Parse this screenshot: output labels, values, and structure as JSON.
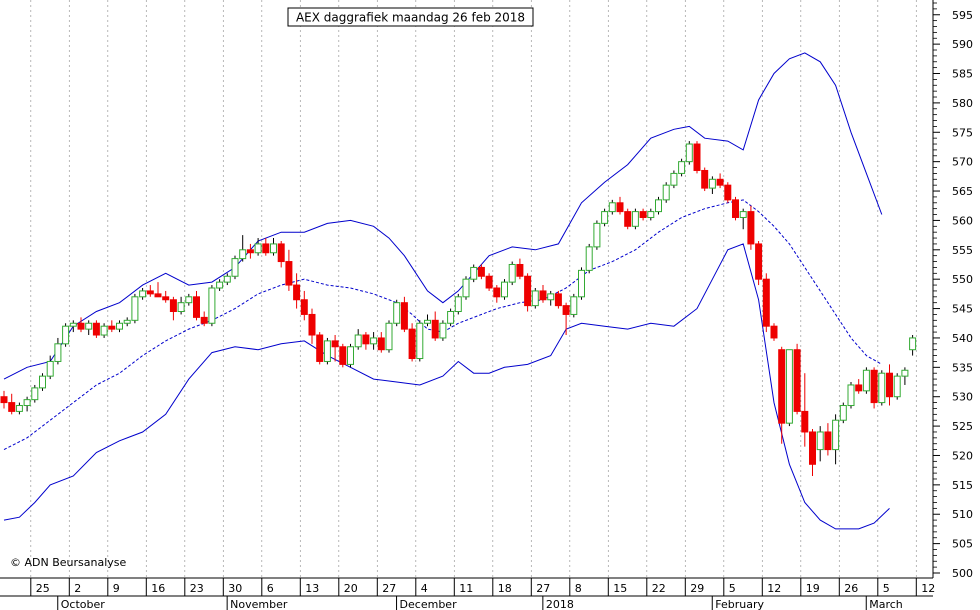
{
  "chart_data": {
    "type": "candlestick",
    "title": "AEX daggrafiek maandag 26 feb 2018",
    "watermark": "© ADN Beursanalyse",
    "ylim": [
      500,
      597
    ],
    "y_ticks": [
      500,
      505,
      510,
      515,
      520,
      525,
      530,
      535,
      540,
      545,
      550,
      555,
      560,
      565,
      570,
      575,
      580,
      585,
      590,
      595
    ],
    "x_tick_labels": [
      {
        "i": 4,
        "label": "25"
      },
      {
        "i": 9,
        "label": "2"
      },
      {
        "i": 14,
        "label": "9"
      },
      {
        "i": 19,
        "label": "16"
      },
      {
        "i": 24,
        "label": "23"
      },
      {
        "i": 29,
        "label": "30"
      },
      {
        "i": 34,
        "label": "6"
      },
      {
        "i": 39,
        "label": "13"
      },
      {
        "i": 44,
        "label": "20"
      },
      {
        "i": 49,
        "label": "27"
      },
      {
        "i": 54,
        "label": "4"
      },
      {
        "i": 59,
        "label": "11"
      },
      {
        "i": 64,
        "label": "18"
      },
      {
        "i": 69,
        "label": "27"
      },
      {
        "i": 74,
        "label": "8"
      },
      {
        "i": 79,
        "label": "15"
      },
      {
        "i": 84,
        "label": "22"
      },
      {
        "i": 89,
        "label": "29"
      },
      {
        "i": 94,
        "label": "5"
      },
      {
        "i": 99,
        "label": "12"
      },
      {
        "i": 104,
        "label": "19"
      },
      {
        "i": 109,
        "label": "26"
      },
      {
        "i": 114,
        "label": "5"
      },
      {
        "i": 119,
        "label": "12"
      }
    ],
    "month_labels": [
      {
        "i": 7.5,
        "label": "October"
      },
      {
        "i": 29.5,
        "label": "November"
      },
      {
        "i": 51.5,
        "label": "December"
      },
      {
        "i": 70.5,
        "label": "2018"
      },
      {
        "i": 92.5,
        "label": "February"
      },
      {
        "i": 112.5,
        "label": "March"
      }
    ],
    "candles": [
      [
        530.0,
        531.0,
        528.0,
        529.0
      ],
      [
        529.0,
        530.5,
        527.0,
        527.5
      ],
      [
        527.5,
        529.0,
        527.0,
        528.5
      ],
      [
        528.5,
        530.0,
        527.5,
        529.5
      ],
      [
        529.5,
        532.0,
        529.0,
        531.5
      ],
      [
        531.5,
        534.0,
        531.0,
        533.5
      ],
      [
        533.5,
        537.0,
        533.0,
        536.0
      ],
      [
        536.0,
        540.0,
        535.5,
        539.0
      ],
      [
        539.0,
        542.5,
        538.5,
        542.0
      ],
      [
        542.0,
        543.0,
        541.0,
        542.5
      ],
      [
        542.5,
        543.5,
        541.0,
        541.5
      ],
      [
        541.5,
        543.0,
        540.5,
        542.5
      ],
      [
        542.5,
        543.0,
        540.0,
        540.5
      ],
      [
        540.5,
        542.5,
        540.0,
        542.0
      ],
      [
        542.0,
        543.0,
        541.0,
        541.5
      ],
      [
        541.5,
        543.0,
        541.0,
        542.5
      ],
      [
        542.5,
        543.5,
        542.0,
        543.0
      ],
      [
        543.0,
        547.5,
        542.5,
        547.0
      ],
      [
        547.0,
        548.5,
        546.5,
        548.0
      ],
      [
        548.0,
        549.0,
        547.0,
        547.5
      ],
      [
        547.5,
        549.5,
        547.0,
        547.0
      ],
      [
        547.0,
        548.0,
        546.0,
        546.5
      ],
      [
        546.5,
        547.0,
        543.0,
        544.5
      ],
      [
        544.5,
        547.0,
        544.0,
        546.0
      ],
      [
        546.0,
        547.5,
        545.5,
        547.0
      ],
      [
        547.0,
        548.0,
        543.0,
        543.5
      ],
      [
        543.5,
        544.5,
        542.0,
        542.5
      ],
      [
        542.5,
        549.0,
        542.0,
        548.5
      ],
      [
        548.5,
        550.0,
        548.0,
        549.5
      ],
      [
        549.5,
        551.0,
        549.0,
        550.5
      ],
      [
        550.5,
        554.0,
        550.0,
        553.5
      ],
      [
        553.5,
        557.5,
        553.0,
        555.0
      ],
      [
        555.0,
        556.0,
        553.5,
        554.5
      ],
      [
        554.5,
        557.0,
        554.0,
        556.0
      ],
      [
        556.0,
        557.0,
        554.0,
        554.5
      ],
      [
        554.5,
        557.0,
        554.0,
        556.0
      ],
      [
        556.0,
        556.5,
        552.0,
        553.0
      ],
      [
        553.0,
        555.0,
        548.0,
        549.0
      ],
      [
        549.0,
        551.0,
        545.0,
        546.5
      ],
      [
        546.5,
        548.0,
        543.0,
        544.0
      ],
      [
        544.0,
        545.0,
        539.0,
        540.5
      ],
      [
        540.5,
        541.0,
        535.5,
        536.0
      ],
      [
        536.0,
        540.0,
        535.5,
        539.5
      ],
      [
        539.5,
        540.5,
        536.0,
        538.5
      ],
      [
        538.5,
        539.0,
        535.0,
        535.5
      ],
      [
        535.5,
        539.0,
        535.0,
        538.5
      ],
      [
        538.5,
        541.5,
        538.0,
        540.5
      ],
      [
        540.5,
        541.0,
        538.0,
        539.0
      ],
      [
        539.0,
        541.0,
        538.0,
        540.0
      ],
      [
        540.0,
        541.0,
        537.5,
        538.0
      ],
      [
        538.0,
        543.0,
        537.5,
        542.5
      ],
      [
        542.5,
        546.5,
        542.0,
        546.0
      ],
      [
        546.0,
        547.0,
        541.0,
        541.5
      ],
      [
        541.5,
        542.5,
        536.0,
        536.5
      ],
      [
        536.5,
        543.0,
        536.0,
        542.5
      ],
      [
        542.5,
        544.0,
        542.0,
        543.0
      ],
      [
        543.0,
        544.5,
        539.5,
        540.0
      ],
      [
        540.0,
        543.0,
        539.5,
        542.5
      ],
      [
        542.5,
        545.0,
        542.0,
        544.5
      ],
      [
        544.5,
        547.5,
        544.0,
        547.0
      ],
      [
        547.0,
        550.5,
        546.5,
        550.0
      ],
      [
        550.0,
        552.5,
        549.5,
        552.0
      ],
      [
        552.0,
        552.5,
        550.0,
        550.5
      ],
      [
        550.5,
        551.0,
        548.0,
        548.5
      ],
      [
        548.5,
        549.0,
        546.0,
        547.0
      ],
      [
        547.0,
        550.0,
        546.5,
        549.5
      ],
      [
        549.5,
        553.0,
        549.0,
        552.5
      ],
      [
        552.5,
        553.5,
        550.0,
        550.5
      ],
      [
        550.5,
        551.0,
        544.5,
        545.5
      ],
      [
        545.5,
        548.5,
        545.0,
        548.0
      ],
      [
        548.0,
        549.0,
        546.0,
        546.5
      ],
      [
        546.5,
        548.0,
        545.5,
        547.5
      ],
      [
        547.5,
        548.0,
        545.0,
        545.5
      ],
      [
        545.5,
        546.0,
        540.5,
        544.0
      ],
      [
        544.0,
        547.5,
        543.5,
        547.0
      ],
      [
        547.0,
        552.0,
        546.5,
        551.5
      ],
      [
        551.5,
        556.0,
        551.0,
        555.5
      ],
      [
        555.5,
        560.0,
        555.0,
        559.5
      ],
      [
        559.5,
        562.0,
        559.0,
        561.5
      ],
      [
        561.5,
        563.5,
        561.0,
        563.0
      ],
      [
        563.0,
        564.0,
        561.0,
        561.5
      ],
      [
        561.5,
        562.0,
        558.5,
        559.0
      ],
      [
        559.0,
        562.0,
        558.5,
        561.5
      ],
      [
        561.5,
        562.0,
        560.0,
        560.5
      ],
      [
        560.5,
        562.0,
        560.0,
        561.5
      ],
      [
        561.5,
        564.0,
        561.0,
        563.5
      ],
      [
        563.5,
        566.5,
        563.0,
        566.0
      ],
      [
        566.0,
        568.5,
        565.5,
        568.0
      ],
      [
        568.0,
        570.5,
        567.5,
        570.0
      ],
      [
        570.0,
        573.5,
        569.5,
        573.0
      ],
      [
        573.0,
        573.5,
        568.0,
        568.5
      ],
      [
        568.5,
        569.0,
        565.0,
        565.5
      ],
      [
        565.5,
        567.5,
        564.5,
        567.0
      ],
      [
        567.0,
        568.0,
        565.5,
        566.0
      ],
      [
        566.0,
        566.5,
        563.0,
        563.5
      ],
      [
        563.5,
        564.0,
        560.0,
        560.5
      ],
      [
        560.5,
        562.0,
        558.5,
        561.5
      ],
      [
        561.5,
        562.5,
        555.0,
        556.0
      ],
      [
        556.0,
        556.5,
        549.0,
        550.0
      ],
      [
        550.0,
        551.0,
        541.0,
        542.0
      ],
      [
        542.0,
        542.5,
        539.5,
        540.0
      ],
      [
        538.0,
        538.5,
        522.0,
        525.5
      ],
      [
        525.5,
        538.0,
        525.0,
        538.0
      ],
      [
        538.0,
        539.0,
        527.0,
        527.5
      ],
      [
        527.5,
        534.0,
        521.5,
        524.0
      ],
      [
        524.0,
        524.5,
        516.5,
        518.5
      ],
      [
        521.0,
        525.0,
        519.0,
        524.0
      ],
      [
        524.0,
        525.5,
        520.0,
        521.0
      ],
      [
        521.0,
        527.0,
        518.5,
        526.0
      ],
      [
        526.0,
        529.0,
        525.5,
        528.5
      ],
      [
        528.5,
        532.5,
        528.0,
        532.0
      ],
      [
        532.0,
        533.0,
        530.5,
        531.0
      ],
      [
        531.0,
        535.0,
        530.5,
        534.5
      ],
      [
        534.5,
        535.0,
        528.0,
        529.0
      ],
      [
        529.0,
        534.5,
        528.5,
        534.0
      ],
      [
        534.0,
        535.5,
        528.5,
        530.0
      ],
      [
        530.0,
        534.0,
        529.5,
        533.5
      ],
      [
        533.5,
        535.0,
        532.0,
        534.5
      ],
      [
        538.0,
        540.5,
        537.0,
        540.0
      ]
    ],
    "bollinger_bands": {
      "upper": [
        [
          0,
          533
        ],
        [
          3,
          535
        ],
        [
          6,
          536
        ],
        [
          9,
          542
        ],
        [
          12,
          544.5
        ],
        [
          15,
          546
        ],
        [
          18,
          549
        ],
        [
          21,
          551
        ],
        [
          24,
          549
        ],
        [
          27,
          549.5
        ],
        [
          30,
          552
        ],
        [
          33,
          556.5
        ],
        [
          36,
          558
        ],
        [
          39,
          558
        ],
        [
          42,
          559.5
        ],
        [
          45,
          560
        ],
        [
          48,
          559
        ],
        [
          50,
          557
        ],
        [
          52,
          554
        ],
        [
          55,
          548
        ],
        [
          57,
          546
        ],
        [
          59,
          548
        ],
        [
          61,
          551
        ],
        [
          63,
          554
        ],
        [
          66,
          555.5
        ],
        [
          69,
          555
        ],
        [
          72,
          556
        ],
        [
          75,
          563
        ],
        [
          78,
          566.5
        ],
        [
          81,
          569.5
        ],
        [
          84,
          574
        ],
        [
          87,
          575.5
        ],
        [
          89,
          576
        ],
        [
          91,
          574
        ],
        [
          94,
          573.5
        ],
        [
          96,
          572
        ],
        [
          98,
          580.5
        ],
        [
          100,
          585
        ],
        [
          102,
          587.5
        ],
        [
          104,
          588.5
        ],
        [
          106,
          587
        ],
        [
          108,
          583
        ],
        [
          110,
          575
        ],
        [
          112,
          568
        ],
        [
          114,
          561
        ]
      ],
      "middle": [
        [
          0,
          521
        ],
        [
          3,
          523
        ],
        [
          6,
          526
        ],
        [
          9,
          529
        ],
        [
          12,
          532
        ],
        [
          15,
          534
        ],
        [
          18,
          537
        ],
        [
          21,
          539.5
        ],
        [
          24,
          541.5
        ],
        [
          27,
          543
        ],
        [
          30,
          545
        ],
        [
          33,
          547.5
        ],
        [
          36,
          549
        ],
        [
          39,
          550
        ],
        [
          42,
          549
        ],
        [
          45,
          548.5
        ],
        [
          48,
          547.5
        ],
        [
          51,
          546
        ],
        [
          53,
          544
        ],
        [
          55,
          541.5
        ],
        [
          57,
          541
        ],
        [
          59,
          542.5
        ],
        [
          61,
          543.5
        ],
        [
          64,
          545
        ],
        [
          67,
          546
        ],
        [
          70,
          546.5
        ],
        [
          73,
          548.5
        ],
        [
          76,
          551.5
        ],
        [
          79,
          553
        ],
        [
          82,
          555
        ],
        [
          85,
          558
        ],
        [
          88,
          560.5
        ],
        [
          91,
          562
        ],
        [
          94,
          563
        ],
        [
          96,
          563.5
        ],
        [
          98,
          561.5
        ],
        [
          100,
          559
        ],
        [
          102,
          556
        ],
        [
          104,
          552
        ],
        [
          106,
          548
        ],
        [
          108,
          544
        ],
        [
          110,
          540
        ],
        [
          112,
          537
        ],
        [
          114,
          535.5
        ]
      ],
      "lower": [
        [
          0,
          509
        ],
        [
          2,
          509.5
        ],
        [
          4,
          512
        ],
        [
          6,
          515
        ],
        [
          9,
          516.5
        ],
        [
          12,
          520.5
        ],
        [
          15,
          522.5
        ],
        [
          18,
          524
        ],
        [
          21,
          527
        ],
        [
          24,
          533
        ],
        [
          27,
          537.5
        ],
        [
          30,
          538.5
        ],
        [
          33,
          538
        ],
        [
          36,
          539
        ],
        [
          39,
          539.5
        ],
        [
          42,
          537
        ],
        [
          45,
          535
        ],
        [
          48,
          533
        ],
        [
          51,
          532.5
        ],
        [
          54,
          532
        ],
        [
          57,
          533.5
        ],
        [
          59,
          536
        ],
        [
          61,
          534
        ],
        [
          63,
          534
        ],
        [
          65,
          535
        ],
        [
          68,
          535.5
        ],
        [
          71,
          537
        ],
        [
          73,
          541.5
        ],
        [
          75,
          542.5
        ],
        [
          78,
          542
        ],
        [
          81,
          541.5
        ],
        [
          84,
          542.5
        ],
        [
          87,
          542
        ],
        [
          90,
          545
        ],
        [
          92,
          550
        ],
        [
          94,
          555
        ],
        [
          96,
          556
        ],
        [
          98,
          546.5
        ],
        [
          100,
          529
        ],
        [
          102,
          518.5
        ],
        [
          104,
          512
        ],
        [
          106,
          509
        ],
        [
          108,
          507.5
        ],
        [
          111,
          507.5
        ],
        [
          113,
          508.5
        ],
        [
          115,
          511
        ]
      ]
    },
    "colors": {
      "up": "#33aa33",
      "down": "#ee0000",
      "band": "#0000cc",
      "grid": "#999999",
      "axis": "#000000"
    }
  }
}
